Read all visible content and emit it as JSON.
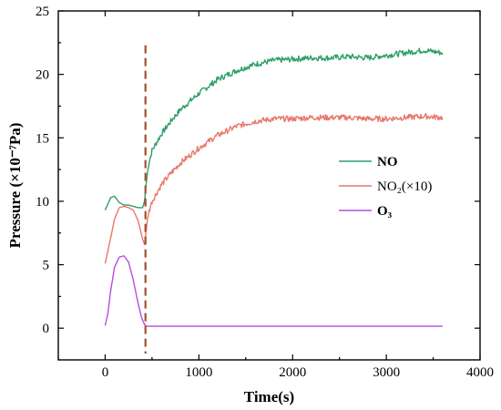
{
  "chart_data": {
    "type": "line",
    "xlabel": "Time(s)",
    "ylabel": "Pressure (×10⁻⁷Pa)",
    "xlim": [
      -500,
      4000
    ],
    "ylim": [
      -2.5,
      25
    ],
    "xticks": [
      0,
      1000,
      2000,
      3000,
      4000
    ],
    "yticks": [
      0,
      5,
      10,
      15,
      20,
      25
    ],
    "xtick_labels": [
      "0",
      "1000",
      "2000",
      "3000",
      "4000"
    ],
    "ytick_labels": [
      "0",
      "5",
      "10",
      "15",
      "20",
      "25"
    ],
    "grid": false,
    "legend_position": "right",
    "marker_line": {
      "x": 430,
      "color": "#a0522d",
      "style": "dashed"
    },
    "series": [
      {
        "name": "NO",
        "legend_label": "NO",
        "color": "#2e9e68",
        "x": [
          0,
          60,
          100,
          150,
          200,
          250,
          300,
          350,
          400,
          420,
          440,
          460,
          500,
          600,
          700,
          800,
          1000,
          1200,
          1400,
          1600,
          1800,
          2000,
          2200,
          2400,
          2600,
          2800,
          3000,
          3200,
          3400,
          3600
        ],
        "y": [
          9.3,
          10.3,
          10.4,
          9.9,
          9.7,
          9.7,
          9.6,
          9.5,
          9.5,
          10.0,
          11.5,
          12.8,
          14.0,
          15.3,
          16.3,
          17.2,
          18.5,
          19.6,
          20.3,
          20.8,
          21.1,
          21.2,
          21.3,
          21.3,
          21.4,
          21.3,
          21.5,
          21.7,
          21.9,
          21.7
        ]
      },
      {
        "name": "NO2(×10)",
        "legend_label": "NO₂(×10)",
        "color": "#e8776b",
        "x": [
          0,
          50,
          100,
          150,
          200,
          250,
          300,
          350,
          400,
          420,
          440,
          460,
          500,
          600,
          700,
          800,
          1000,
          1200,
          1400,
          1600,
          1800,
          2000,
          2200,
          2400,
          2600,
          2800,
          3000,
          3200,
          3400,
          3600
        ],
        "y": [
          5.1,
          6.8,
          8.6,
          9.5,
          9.6,
          9.5,
          9.3,
          8.5,
          7.0,
          6.6,
          7.8,
          9.0,
          10.0,
          11.3,
          12.2,
          13.0,
          14.2,
          15.2,
          15.9,
          16.3,
          16.5,
          16.5,
          16.6,
          16.6,
          16.6,
          16.5,
          16.5,
          16.6,
          16.7,
          16.6
        ]
      },
      {
        "name": "O3",
        "legend_label": "O₃",
        "color": "#b44ee0",
        "x": [
          0,
          30,
          60,
          100,
          150,
          200,
          250,
          300,
          350,
          390,
          420,
          430,
          450,
          600,
          1000,
          2000,
          3000,
          3600
        ],
        "y": [
          0.2,
          1.2,
          3.0,
          4.8,
          5.6,
          5.7,
          5.2,
          3.8,
          2.0,
          0.8,
          0.3,
          0.2,
          0.15,
          0.15,
          0.15,
          0.15,
          0.15,
          0.15
        ]
      }
    ]
  }
}
